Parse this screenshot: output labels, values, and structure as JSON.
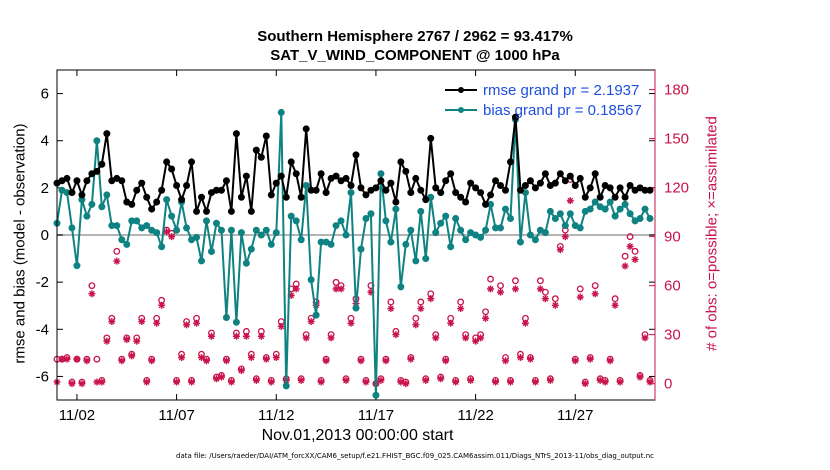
{
  "chart_data": {
    "type": "line",
    "title": "Southern Hemisphere 2767 / 2962 = 93.417%",
    "subtitle": "SAT_V_WIND_COMPONENT @ 1000 hPa",
    "xlabel": "Nov.01,2013 00:00:00 start",
    "ylabel_left": "rmse and bias (model - observation)",
    "ylabel_right": "# of obs: o=possible; ×=assimilated",
    "footnote": "data file: /Users/raeder/DAI/ATM_forcXX/CAM6_setup/f.e21.FHIST_BGC.f09_025.CAM6assim.011/Diags_NTrS_2013-11/obs_diag_output.nc",
    "x_ticks": [
      2,
      7,
      12,
      17,
      22,
      27
    ],
    "x_tick_labels": [
      "11/02",
      "11/07",
      "11/12",
      "11/17",
      "11/22",
      "11/27"
    ],
    "xlim": [
      1.0,
      31.0
    ],
    "ylim_left": [
      -7,
      7
    ],
    "y_ticks_left": [
      -6,
      -4,
      -2,
      0,
      2,
      4,
      6
    ],
    "ylim_right": [
      -10,
      192
    ],
    "y_ticks_right": [
      0,
      30,
      60,
      90,
      120,
      150,
      180
    ],
    "zero_line": 0,
    "colors": {
      "rmse": "#000000",
      "bias": "#0f8282",
      "obs": "#c8144b",
      "legend_text": "#1f4fe0",
      "zero": "#b4b4b4"
    },
    "series": [
      {
        "name": "rmse",
        "legend": "rmse grand pr = 2.1937",
        "x": [
          1.0,
          1.25,
          1.5,
          1.75,
          2.0,
          2.25,
          2.5,
          2.75,
          3.0,
          3.25,
          3.5,
          3.75,
          4.0,
          4.25,
          4.5,
          4.75,
          5.0,
          5.25,
          5.5,
          5.75,
          6.0,
          6.25,
          6.5,
          6.75,
          7.0,
          7.25,
          7.5,
          7.75,
          8.0,
          8.25,
          8.5,
          8.75,
          9.0,
          9.25,
          9.5,
          9.75,
          10.0,
          10.25,
          10.5,
          10.75,
          11.0,
          11.25,
          11.5,
          11.75,
          12.0,
          12.25,
          12.5,
          12.75,
          13.0,
          13.25,
          13.5,
          13.75,
          14.0,
          14.25,
          14.5,
          14.75,
          15.0,
          15.25,
          15.5,
          15.75,
          16.0,
          16.25,
          16.5,
          16.75,
          17.0,
          17.25,
          17.5,
          17.75,
          18.0,
          18.25,
          18.5,
          18.75,
          19.0,
          19.25,
          19.5,
          19.75,
          20.0,
          20.25,
          20.5,
          20.75,
          21.0,
          21.25,
          21.5,
          21.75,
          22.0,
          22.25,
          22.5,
          22.75,
          23.0,
          23.25,
          23.5,
          23.75,
          24.0,
          24.25,
          24.5,
          24.75,
          25.0,
          25.25,
          25.5,
          25.75,
          26.0,
          26.25,
          26.5,
          26.75,
          27.0,
          27.25,
          27.5,
          27.75,
          28.0,
          28.25,
          28.5,
          28.75,
          29.0,
          29.25,
          29.5,
          29.75,
          30.0,
          30.25,
          30.5,
          30.75
        ],
        "values": [
          2.2,
          2.3,
          2.4,
          1.8,
          2.3,
          1.7,
          2.3,
          2.6,
          2.7,
          3.0,
          4.3,
          2.3,
          2.4,
          2.3,
          1.4,
          1.3,
          1.9,
          2.2,
          1.6,
          1.1,
          1.4,
          1.9,
          3.1,
          2.8,
          2.1,
          1.5,
          2.1,
          3.1,
          1.0,
          1.6,
          1.0,
          1.8,
          1.9,
          1.9,
          2.3,
          1.0,
          4.3,
          1.6,
          2.5,
          1.0,
          3.6,
          3.3,
          4.2,
          1.7,
          2.2,
          2.5,
          1.6,
          3.1,
          2.6,
          1.6,
          4.5,
          1.9,
          1.9,
          2.6,
          1.8,
          2.4,
          2.5,
          2.3,
          2.4,
          2.1,
          3.4,
          2.0,
          1.7,
          1.9,
          2.0,
          2.3,
          1.9,
          2.2,
          1.4,
          3.1,
          2.7,
          1.8,
          2.4,
          1.9,
          1.5,
          4.1,
          2.0,
          1.8,
          2.3,
          2.6,
          1.8,
          1.6,
          1.4,
          2.2,
          2.0,
          1.8,
          1.3,
          1.7,
          2.3,
          2.1,
          1.9,
          3.1,
          5.0,
          1.9,
          2.1,
          2.3,
          2.0,
          2.2,
          2.6,
          2.1,
          2.2,
          2.6,
          2.3,
          2.5,
          2.1,
          2.4,
          1.6,
          2.0,
          2.6,
          1.6,
          2.1,
          2.0,
          1.6,
          2.0,
          1.6,
          2.1,
          1.9,
          2.0,
          1.9,
          1.9
        ]
      },
      {
        "name": "bias",
        "legend": "bias grand pr = 0.18567",
        "x": [
          1.0,
          1.25,
          1.5,
          1.75,
          2.0,
          2.25,
          2.5,
          2.75,
          3.0,
          3.25,
          3.5,
          3.75,
          4.0,
          4.25,
          4.5,
          4.75,
          5.0,
          5.25,
          5.5,
          5.75,
          6.0,
          6.25,
          6.5,
          6.75,
          7.0,
          7.25,
          7.5,
          7.75,
          8.0,
          8.25,
          8.5,
          8.75,
          9.0,
          9.25,
          9.5,
          9.75,
          10.0,
          10.25,
          10.5,
          10.75,
          11.0,
          11.25,
          11.5,
          11.75,
          12.0,
          12.25,
          12.5,
          12.75,
          13.0,
          13.25,
          13.5,
          13.75,
          14.0,
          14.25,
          14.5,
          14.75,
          15.0,
          15.25,
          15.5,
          15.75,
          16.0,
          16.25,
          16.5,
          16.75,
          17.0,
          17.25,
          17.5,
          17.75,
          18.0,
          18.25,
          18.5,
          18.75,
          19.0,
          19.25,
          19.5,
          19.75,
          20.0,
          20.25,
          20.5,
          20.75,
          21.0,
          21.25,
          21.5,
          21.75,
          22.0,
          22.25,
          22.5,
          22.75,
          23.0,
          23.25,
          23.5,
          23.75,
          24.0,
          24.25,
          24.5,
          24.75,
          25.0,
          25.25,
          25.5,
          25.75,
          26.0,
          26.25,
          26.5,
          26.75,
          27.0,
          27.25,
          27.5,
          27.75,
          28.0,
          28.25,
          28.5,
          28.75,
          29.0,
          29.25,
          29.5,
          29.75,
          30.0,
          30.25,
          30.5,
          30.75
        ],
        "values": [
          0.5,
          1.9,
          1.8,
          0.3,
          -1.3,
          1.5,
          0.8,
          1.3,
          4.0,
          1.2,
          1.7,
          0.4,
          0.4,
          -0.2,
          -0.4,
          0.6,
          0.6,
          0.3,
          0.4,
          0.2,
          0.1,
          -0.5,
          1.5,
          0.8,
          0.2,
          1.4,
          0.3,
          -0.2,
          -0.1,
          -1.1,
          0.6,
          -0.7,
          0.5,
          0.2,
          -3.5,
          0.2,
          -3.7,
          0.1,
          -1.2,
          -0.6,
          0.2,
          0.0,
          0.2,
          -0.4,
          0.1,
          5.2,
          -6.4,
          0.8,
          0.6,
          -0.2,
          2.1,
          -1.9,
          -3.4,
          -0.3,
          -0.3,
          -0.4,
          0.4,
          0.6,
          0.0,
          1.8,
          -3.1,
          -0.6,
          0.7,
          0.9,
          -6.8,
          2.6,
          0.6,
          -0.3,
          1.1,
          -2.2,
          -0.4,
          0.2,
          -1.1,
          1.0,
          -1.0,
          1.6,
          0.1,
          0.5,
          0.8,
          -0.5,
          0.7,
          0.2,
          -0.2,
          0.1,
          0.0,
          -0.1,
          0.2,
          1.3,
          0.3,
          0.3,
          1.1,
          0.7,
          4.9,
          -0.3,
          1.8,
          0.0,
          -0.2,
          0.2,
          0.1,
          1.0,
          0.7,
          0.9,
          0.4,
          0.9,
          0.4,
          0.3,
          1.0,
          1.1,
          1.4,
          1.2,
          1.1,
          1.4,
          0.8,
          1.1,
          1.3,
          0.9,
          0.6,
          0.7,
          1.1,
          0.7
        ]
      },
      {
        "name": "obs_possible",
        "marker": "o",
        "x": [
          1.0,
          1.25,
          1.5,
          1.75,
          2.0,
          2.25,
          2.5,
          2.75,
          3.0,
          3.25,
          3.5,
          3.75,
          4.0,
          4.25,
          4.5,
          4.75,
          5.0,
          5.25,
          5.5,
          5.75,
          6.0,
          6.25,
          6.5,
          6.75,
          7.0,
          7.25,
          7.5,
          7.75,
          8.0,
          8.25,
          8.5,
          8.75,
          9.0,
          9.25,
          9.5,
          9.75,
          10.0,
          10.25,
          10.5,
          10.75,
          11.0,
          11.25,
          11.5,
          11.75,
          12.0,
          12.25,
          12.5,
          12.75,
          13.0,
          13.25,
          13.5,
          13.75,
          14.0,
          14.25,
          14.5,
          14.75,
          15.0,
          15.25,
          15.5,
          15.75,
          16.0,
          16.25,
          16.5,
          16.75,
          17.0,
          17.25,
          17.5,
          17.75,
          18.0,
          18.25,
          18.5,
          18.75,
          19.0,
          19.25,
          19.5,
          19.75,
          20.0,
          20.25,
          20.5,
          20.75,
          21.0,
          21.25,
          21.5,
          21.75,
          22.0,
          22.25,
          22.5,
          22.75,
          23.0,
          23.25,
          23.5,
          23.75,
          24.0,
          24.25,
          24.5,
          24.75,
          25.0,
          25.25,
          25.5,
          25.75,
          26.0,
          26.25,
          26.5,
          26.75,
          27.0,
          27.25,
          27.5,
          27.75,
          28.0,
          28.25,
          28.5,
          28.75,
          29.0,
          29.25,
          29.5,
          29.75,
          30.0,
          30.25,
          30.5,
          30.75
        ],
        "values": [
          15,
          15,
          16,
          1,
          15,
          1,
          15,
          60,
          15,
          2,
          28,
          40,
          81,
          15,
          28,
          18,
          28,
          40,
          2,
          15,
          40,
          51,
          94,
          92,
          2,
          18,
          38,
          2,
          40,
          18,
          15,
          31,
          4,
          5,
          15,
          2,
          31,
          9,
          32,
          18,
          3,
          32,
          16,
          2,
          18,
          38,
          3,
          58,
          61,
          3,
          30,
          40,
          50,
          2,
          15,
          30,
          62,
          60,
          3,
          40,
          52,
          15,
          2,
          60,
          0,
          3,
          15,
          50,
          32,
          2,
          1,
          16,
          40,
          50,
          3,
          55,
          30,
          4,
          15,
          40,
          2,
          50,
          30,
          3,
          28,
          30,
          44,
          64,
          2,
          60,
          16,
          2,
          63,
          18,
          40,
          16,
          2,
          63,
          56,
          3,
          52,
          84,
          94,
          125,
          15,
          58,
          1,
          16,
          60,
          3,
          2,
          15,
          52,
          2,
          78,
          90,
          81,
          5,
          30,
          2
        ]
      },
      {
        "name": "obs_assimilated",
        "marker": "*",
        "x": [
          1.0,
          1.25,
          1.5,
          1.75,
          2.0,
          2.25,
          2.5,
          2.75,
          3.0,
          3.25,
          3.5,
          3.75,
          4.0,
          4.25,
          4.5,
          4.75,
          5.0,
          5.25,
          5.5,
          5.75,
          6.0,
          6.25,
          6.5,
          6.75,
          7.0,
          7.25,
          7.5,
          7.75,
          8.0,
          8.25,
          8.5,
          8.75,
          9.0,
          9.25,
          9.5,
          9.75,
          10.0,
          10.25,
          10.5,
          10.75,
          11.0,
          11.25,
          11.5,
          11.75,
          12.0,
          12.25,
          12.5,
          12.75,
          13.0,
          13.25,
          13.5,
          13.75,
          14.0,
          14.25,
          14.5,
          14.75,
          15.0,
          15.25,
          15.5,
          15.75,
          16.0,
          16.25,
          16.5,
          16.75,
          17.0,
          17.25,
          17.5,
          17.75,
          18.0,
          18.25,
          18.5,
          18.75,
          19.0,
          19.25,
          19.5,
          19.75,
          20.0,
          20.25,
          20.5,
          20.75,
          21.0,
          21.25,
          21.5,
          21.75,
          22.0,
          22.25,
          22.5,
          22.75,
          23.0,
          23.25,
          23.5,
          23.75,
          24.0,
          24.25,
          24.5,
          24.75,
          25.0,
          25.25,
          25.5,
          25.75,
          26.0,
          26.25,
          26.5,
          26.75,
          27.0,
          27.25,
          27.5,
          27.75,
          28.0,
          28.25,
          28.5,
          28.75,
          29.0,
          29.25,
          29.5,
          29.75,
          30.0,
          30.25,
          30.5,
          30.75
        ],
        "values": [
          1,
          15,
          15,
          0,
          15,
          0,
          14,
          55,
          1,
          1,
          26,
          38,
          75,
          14,
          27,
          17,
          26,
          38,
          1,
          14,
          37,
          48,
          93,
          90,
          1,
          16,
          36,
          1,
          37,
          16,
          14,
          29,
          3,
          4,
          14,
          1,
          29,
          8,
          29,
          16,
          2,
          29,
          15,
          1,
          16,
          35,
          2,
          54,
          58,
          2,
          28,
          38,
          48,
          1,
          14,
          28,
          58,
          58,
          2,
          37,
          49,
          14,
          1,
          56,
          0,
          2,
          14,
          46,
          30,
          1,
          0,
          15,
          36,
          46,
          2,
          52,
          28,
          3,
          14,
          37,
          1,
          46,
          28,
          2,
          26,
          28,
          40,
          58,
          1,
          56,
          14,
          1,
          58,
          16,
          37,
          15,
          1,
          58,
          52,
          2,
          48,
          82,
          90,
          112,
          14,
          53,
          0,
          15,
          55,
          2,
          1,
          14,
          48,
          1,
          72,
          84,
          76,
          4,
          28,
          1
        ]
      }
    ],
    "legend_location": "top-right"
  }
}
